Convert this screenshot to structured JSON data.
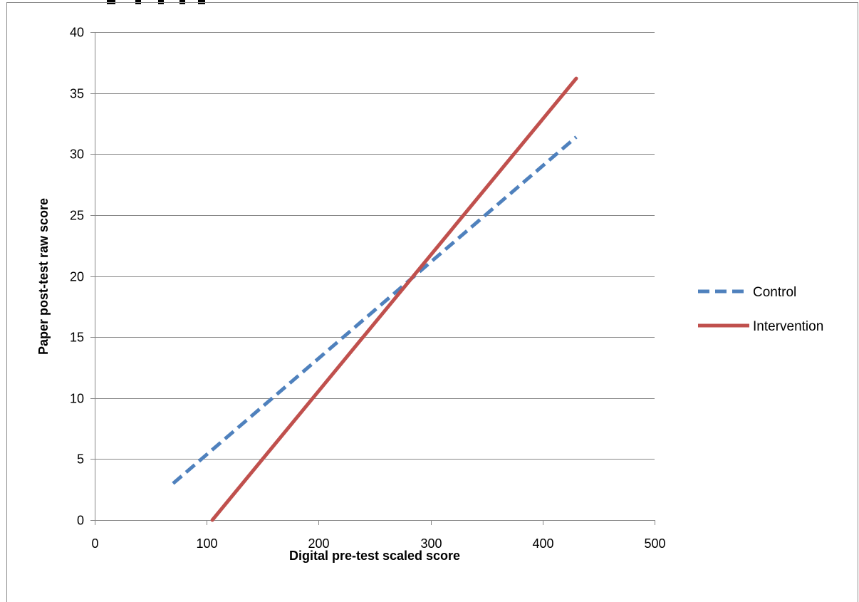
{
  "chart_data": {
    "type": "line",
    "title": "",
    "xlabel": "Digital pre-test scaled score",
    "ylabel": "Paper post-test raw score",
    "xlim": [
      0,
      500
    ],
    "ylim": [
      0,
      40
    ],
    "x_ticks": [
      0,
      100,
      200,
      300,
      400,
      500
    ],
    "y_ticks": [
      0,
      5,
      10,
      15,
      20,
      25,
      30,
      35,
      40
    ],
    "grid": "horizontal",
    "legend_position": "right",
    "series": [
      {
        "name": "Control",
        "style": "dashed",
        "color": "#4F81BD",
        "x": [
          70,
          430
        ],
        "y": [
          3.0,
          31.4
        ]
      },
      {
        "name": "Intervention",
        "style": "solid",
        "color": "#C0504D",
        "x": [
          105,
          430
        ],
        "y": [
          0.0,
          36.2
        ]
      }
    ]
  }
}
